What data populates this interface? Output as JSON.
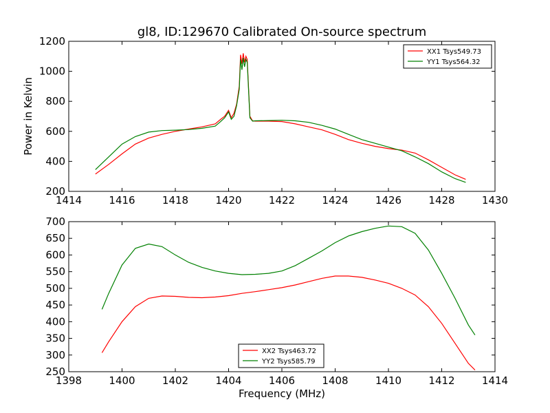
{
  "chart_data": [
    {
      "type": "line",
      "title": "gl8, ID:129670 Calibrated On-source spectrum",
      "xlabel": "",
      "ylabel": "Power in Kelvin",
      "xlim": [
        1414,
        1430
      ],
      "ylim": [
        200,
        1200
      ],
      "xticks": [
        1414,
        1416,
        1418,
        1420,
        1422,
        1424,
        1426,
        1428,
        1430
      ],
      "yticks": [
        200,
        400,
        600,
        800,
        1000,
        1200
      ],
      "grid": false,
      "legend_position": "top-right",
      "series": [
        {
          "name": "XX1 Tsys549.73",
          "color": "#ff0000",
          "x": [
            1415.0,
            1415.5,
            1416.0,
            1416.5,
            1417.0,
            1417.5,
            1418.0,
            1418.5,
            1419.0,
            1419.5,
            1419.7,
            1419.85,
            1420.0,
            1420.1,
            1420.2,
            1420.3,
            1420.4,
            1420.45,
            1420.5,
            1420.55,
            1420.6,
            1420.65,
            1420.7,
            1420.8,
            1420.9,
            1421.0,
            1421.5,
            1422.0,
            1422.5,
            1423.0,
            1423.5,
            1424.0,
            1424.5,
            1425.0,
            1425.5,
            1426.0,
            1426.5,
            1427.0,
            1427.5,
            1428.0,
            1428.5,
            1428.9
          ],
          "y": [
            315,
            380,
            450,
            515,
            555,
            580,
            600,
            615,
            630,
            650,
            680,
            700,
            740,
            690,
            720,
            780,
            900,
            1110,
            1050,
            1120,
            1060,
            1100,
            1080,
            700,
            670,
            668,
            668,
            665,
            650,
            630,
            610,
            580,
            545,
            520,
            500,
            485,
            475,
            455,
            410,
            360,
            310,
            280
          ]
        },
        {
          "name": "YY1 Tsys564.32",
          "color": "#008000",
          "x": [
            1415.0,
            1415.5,
            1416.0,
            1416.5,
            1417.0,
            1417.5,
            1418.0,
            1418.5,
            1419.0,
            1419.5,
            1419.7,
            1419.85,
            1420.0,
            1420.1,
            1420.2,
            1420.3,
            1420.4,
            1420.45,
            1420.5,
            1420.55,
            1420.6,
            1420.65,
            1420.7,
            1420.8,
            1420.9,
            1421.0,
            1421.5,
            1422.0,
            1422.5,
            1423.0,
            1423.5,
            1424.0,
            1424.5,
            1425.0,
            1425.5,
            1426.0,
            1426.5,
            1427.0,
            1427.5,
            1428.0,
            1428.5,
            1428.9
          ],
          "y": [
            345,
            430,
            515,
            565,
            595,
            605,
            608,
            612,
            620,
            635,
            665,
            690,
            730,
            680,
            700,
            770,
            880,
            1080,
            1010,
            1090,
            1030,
            1080,
            1060,
            690,
            668,
            670,
            672,
            674,
            670,
            660,
            640,
            615,
            580,
            545,
            520,
            495,
            470,
            430,
            385,
            330,
            285,
            260
          ]
        }
      ]
    },
    {
      "type": "line",
      "title": "",
      "xlabel": "Frequency (MHz)",
      "ylabel": "",
      "xlim": [
        1398,
        1414
      ],
      "ylim": [
        250,
        700
      ],
      "xticks": [
        1398,
        1400,
        1402,
        1404,
        1406,
        1408,
        1410,
        1412,
        1414
      ],
      "yticks": [
        250,
        300,
        350,
        400,
        450,
        500,
        550,
        600,
        650,
        700
      ],
      "grid": false,
      "legend_position": "bottom-center",
      "series": [
        {
          "name": "XX2 Tsys463.72",
          "color": "#ff0000",
          "x": [
            1399.25,
            1399.5,
            1400.0,
            1400.5,
            1401.0,
            1401.5,
            1402.0,
            1402.5,
            1403.0,
            1403.5,
            1404.0,
            1404.5,
            1405.0,
            1405.5,
            1406.0,
            1406.5,
            1407.0,
            1407.5,
            1408.0,
            1408.5,
            1409.0,
            1409.5,
            1410.0,
            1410.5,
            1411.0,
            1411.5,
            1412.0,
            1412.5,
            1413.0,
            1413.25
          ],
          "y": [
            307,
            340,
            400,
            445,
            470,
            477,
            476,
            473,
            472,
            474,
            478,
            485,
            490,
            496,
            502,
            510,
            520,
            530,
            537,
            537,
            533,
            525,
            515,
            500,
            480,
            445,
            395,
            335,
            275,
            255
          ]
        },
        {
          "name": "YY2 Tsys585.79",
          "color": "#008000",
          "x": [
            1399.25,
            1399.5,
            1400.0,
            1400.5,
            1401.0,
            1401.5,
            1402.0,
            1402.5,
            1403.0,
            1403.5,
            1404.0,
            1404.5,
            1405.0,
            1405.5,
            1406.0,
            1406.5,
            1407.0,
            1407.5,
            1408.0,
            1408.5,
            1409.0,
            1409.5,
            1410.0,
            1410.5,
            1411.0,
            1411.5,
            1412.0,
            1412.5,
            1413.0,
            1413.25
          ],
          "y": [
            437,
            485,
            570,
            620,
            633,
            625,
            600,
            578,
            563,
            552,
            545,
            541,
            542,
            545,
            552,
            568,
            590,
            612,
            637,
            657,
            670,
            680,
            687,
            685,
            665,
            615,
            545,
            470,
            390,
            360
          ]
        }
      ]
    }
  ]
}
